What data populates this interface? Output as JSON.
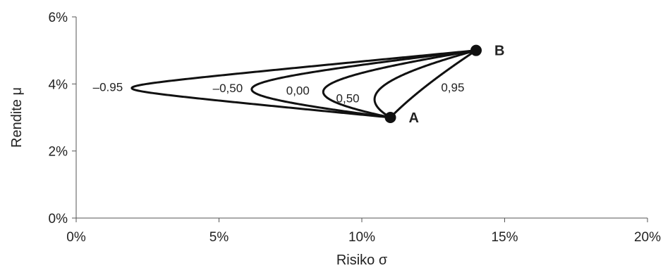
{
  "chart_data": {
    "type": "line",
    "title": "",
    "xlabel": "Risiko σ",
    "ylabel": "Rendite μ",
    "xlim": [
      0,
      20
    ],
    "ylim": [
      0,
      6
    ],
    "x_ticks": [
      "0%",
      "5%",
      "10%",
      "15%",
      "20%"
    ],
    "y_ticks": [
      "0%",
      "2%",
      "4%",
      "6%"
    ],
    "grid": false,
    "assets": [
      {
        "name": "A",
        "sigma": 11,
        "mu": 3
      },
      {
        "name": "B",
        "sigma": 14,
        "mu": 5
      }
    ],
    "series": [
      {
        "name": "–0.95",
        "correlation": -0.95
      },
      {
        "name": "–0,50",
        "correlation": -0.5
      },
      {
        "name": "0,00",
        "correlation": 0.0
      },
      {
        "name": "0,50",
        "correlation": 0.5
      },
      {
        "name": "0,95",
        "correlation": 0.95
      }
    ],
    "line_color": "#111111"
  }
}
